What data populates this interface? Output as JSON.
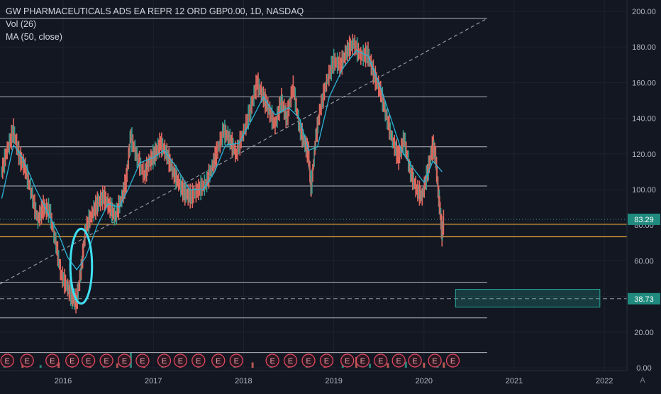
{
  "legend": {
    "symbol": "GW PHARMACEUTICALS ADS EA REPR 12 ORD GBP0.00, 1D, NASDAQ",
    "volume": "Vol (26)",
    "ma": "MA (50, close)"
  },
  "chart_data": {
    "type": "candlestick",
    "title": "GW PHARMACEUTICALS ADS EA REPR 12 ORD GBP0.00, 1D, NASDAQ",
    "x_ticks": [
      "2016",
      "2017",
      "2018",
      "2019",
      "2020",
      "2021",
      "2022"
    ],
    "y_ticks": [
      "0.00",
      "20.00",
      "40.00",
      "60.00",
      "80.00",
      "100.00",
      "120.00",
      "140.00",
      "160.00",
      "180.00",
      "200.00"
    ],
    "xlim": [
      2015.3,
      2022.25
    ],
    "ylim": [
      0,
      200
    ],
    "price_labels": {
      "last": "83.29",
      "marker": "38.73"
    },
    "price_path": [
      [
        2015.32,
        110
      ],
      [
        2015.38,
        122
      ],
      [
        2015.45,
        133
      ],
      [
        2015.52,
        118
      ],
      [
        2015.58,
        112
      ],
      [
        2015.65,
        98
      ],
      [
        2015.72,
        83
      ],
      [
        2015.78,
        90
      ],
      [
        2015.85,
        88
      ],
      [
        2015.92,
        70
      ],
      [
        2015.98,
        52
      ],
      [
        2016.05,
        45
      ],
      [
        2016.1,
        40
      ],
      [
        2016.15,
        37
      ],
      [
        2016.2,
        55
      ],
      [
        2016.25,
        78
      ],
      [
        2016.32,
        86
      ],
      [
        2016.38,
        92
      ],
      [
        2016.45,
        96
      ],
      [
        2016.52,
        90
      ],
      [
        2016.58,
        85
      ],
      [
        2016.65,
        95
      ],
      [
        2016.7,
        105
      ],
      [
        2016.75,
        130
      ],
      [
        2016.82,
        118
      ],
      [
        2016.9,
        108
      ],
      [
        2016.95,
        115
      ],
      [
        2017.02,
        120
      ],
      [
        2017.08,
        126
      ],
      [
        2017.15,
        120
      ],
      [
        2017.22,
        110
      ],
      [
        2017.28,
        104
      ],
      [
        2017.35,
        98
      ],
      [
        2017.42,
        96
      ],
      [
        2017.5,
        100
      ],
      [
        2017.58,
        103
      ],
      [
        2017.65,
        112
      ],
      [
        2017.7,
        120
      ],
      [
        2017.78,
        133
      ],
      [
        2017.85,
        128
      ],
      [
        2017.92,
        120
      ],
      [
        2018.0,
        132
      ],
      [
        2018.08,
        145
      ],
      [
        2018.15,
        160
      ],
      [
        2018.22,
        152
      ],
      [
        2018.28,
        145
      ],
      [
        2018.35,
        136
      ],
      [
        2018.42,
        150
      ],
      [
        2018.48,
        140
      ],
      [
        2018.55,
        158
      ],
      [
        2018.62,
        135
      ],
      [
        2018.68,
        126
      ],
      [
        2018.72,
        120
      ],
      [
        2018.75,
        100
      ],
      [
        2018.8,
        128
      ],
      [
        2018.85,
        145
      ],
      [
        2018.92,
        160
      ],
      [
        2019.0,
        172
      ],
      [
        2019.08,
        170
      ],
      [
        2019.15,
        178
      ],
      [
        2019.22,
        182
      ],
      [
        2019.3,
        175
      ],
      [
        2019.38,
        176
      ],
      [
        2019.45,
        164
      ],
      [
        2019.52,
        155
      ],
      [
        2019.58,
        142
      ],
      [
        2019.65,
        128
      ],
      [
        2019.72,
        118
      ],
      [
        2019.78,
        128
      ],
      [
        2019.85,
        110
      ],
      [
        2019.92,
        100
      ],
      [
        2019.98,
        96
      ],
      [
        2020.05,
        112
      ],
      [
        2020.1,
        125
      ],
      [
        2020.13,
        118
      ],
      [
        2020.16,
        98
      ],
      [
        2020.18,
        88
      ],
      [
        2020.2,
        75
      ],
      [
        2020.22,
        83
      ]
    ],
    "ma50_path": [
      [
        2015.32,
        95
      ],
      [
        2015.45,
        125
      ],
      [
        2015.55,
        118
      ],
      [
        2015.7,
        100
      ],
      [
        2015.82,
        88
      ],
      [
        2015.95,
        75
      ],
      [
        2016.05,
        62
      ],
      [
        2016.15,
        55
      ],
      [
        2016.25,
        62
      ],
      [
        2016.38,
        80
      ],
      [
        2016.5,
        92
      ],
      [
        2016.62,
        90
      ],
      [
        2016.72,
        100
      ],
      [
        2016.85,
        115
      ],
      [
        2017.0,
        118
      ],
      [
        2017.12,
        122
      ],
      [
        2017.25,
        113
      ],
      [
        2017.4,
        100
      ],
      [
        2017.55,
        100
      ],
      [
        2017.68,
        110
      ],
      [
        2017.8,
        125
      ],
      [
        2017.95,
        126
      ],
      [
        2018.1,
        140
      ],
      [
        2018.22,
        152
      ],
      [
        2018.35,
        142
      ],
      [
        2018.5,
        146
      ],
      [
        2018.62,
        140
      ],
      [
        2018.72,
        122
      ],
      [
        2018.82,
        124
      ],
      [
        2018.95,
        152
      ],
      [
        2019.1,
        168
      ],
      [
        2019.25,
        178
      ],
      [
        2019.38,
        175
      ],
      [
        2019.5,
        160
      ],
      [
        2019.62,
        142
      ],
      [
        2019.75,
        122
      ],
      [
        2019.88,
        112
      ],
      [
        2020.0,
        104
      ],
      [
        2020.1,
        116
      ],
      [
        2020.2,
        110
      ]
    ],
    "horizontal_levels": {
      "white": [
        196,
        152,
        124,
        102,
        48,
        28,
        8.5
      ],
      "orange": [
        80.5,
        73.5
      ],
      "dashed_last": 83.29,
      "dashed_marker": 38.73
    },
    "trendline": {
      "from": [
        2015.3,
        47
      ],
      "to": [
        2020.7,
        196
      ]
    },
    "zone": {
      "x": [
        2020.35,
        2021.95
      ],
      "y": [
        34,
        44
      ]
    },
    "ellipse": {
      "center": [
        2016.2,
        57
      ],
      "radius_x": 0.12,
      "radius_y": 21
    },
    "earnings_markers": {
      "label": "E",
      "dates": [
        2015.38,
        2015.6,
        2015.88,
        2016.1,
        2016.28,
        2016.48,
        2016.68,
        2016.88,
        2017.12,
        2017.3,
        2017.5,
        2017.72,
        2017.92,
        2018.32,
        2018.52,
        2018.72,
        2018.92,
        2019.15,
        2019.32,
        2019.52,
        2019.72,
        2019.9,
        2020.12,
        2020.32
      ]
    },
    "volume_scale": 10,
    "volume_bars": [
      [
        2015.35,
        1.2
      ],
      [
        2015.55,
        2.0
      ],
      [
        2015.75,
        1.5
      ],
      [
        2015.95,
        3.0
      ],
      [
        2016.1,
        5.0
      ],
      [
        2016.3,
        3.5
      ],
      [
        2016.45,
        2.0
      ],
      [
        2016.6,
        2.4
      ],
      [
        2016.75,
        8.5
      ],
      [
        2016.9,
        3.2
      ],
      [
        2017.1,
        2.2
      ],
      [
        2017.3,
        1.8
      ],
      [
        2017.5,
        1.5
      ],
      [
        2017.7,
        2.0
      ],
      [
        2017.9,
        2.6
      ],
      [
        2018.1,
        3.0
      ],
      [
        2018.3,
        2.2
      ],
      [
        2018.5,
        1.8
      ],
      [
        2018.7,
        3.2
      ],
      [
        2018.9,
        2.4
      ],
      [
        2019.1,
        4.0
      ],
      [
        2019.25,
        6.0
      ],
      [
        2019.4,
        2.2
      ],
      [
        2019.6,
        2.6
      ],
      [
        2019.8,
        3.4
      ],
      [
        2020.0,
        2.8
      ],
      [
        2020.15,
        4.2
      ],
      [
        2020.22,
        3.0
      ]
    ],
    "time_axis_corner": "A"
  }
}
